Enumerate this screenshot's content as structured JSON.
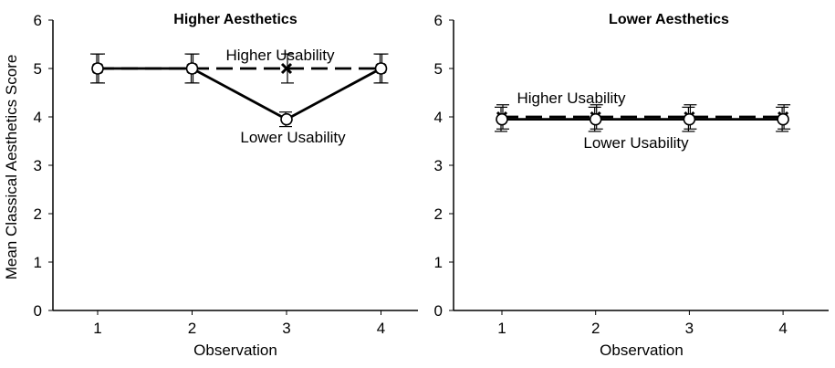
{
  "ylabel": "Mean Classical Aesthetics Score",
  "chart_data": [
    {
      "type": "line",
      "title": "Higher Aesthetics",
      "xlabel": "Observation",
      "ylabel": "Mean Classical Aesthetics Score",
      "x": [
        1,
        2,
        3,
        4
      ],
      "xticks": [
        "1",
        "2",
        "3",
        "4"
      ],
      "yticks": [
        "0",
        "1",
        "2",
        "3",
        "4",
        "5",
        "6"
      ],
      "ylim": [
        0,
        6
      ],
      "grid": false,
      "series": [
        {
          "name": "Higher Usability",
          "values": [
            5.0,
            5.0,
            5.0,
            5.0
          ],
          "errors": [
            0.3,
            0.3,
            0.3,
            0.3
          ],
          "style": "dashed",
          "marker": "x"
        },
        {
          "name": "Lower Usability",
          "values": [
            5.0,
            5.0,
            3.95,
            5.0
          ],
          "errors": [
            0.3,
            0.3,
            0.15,
            0.3
          ],
          "style": "solid",
          "marker": "o"
        }
      ]
    },
    {
      "type": "line",
      "title": "Lower Aesthetics",
      "xlabel": "Observation",
      "ylabel": "",
      "x": [
        1,
        2,
        3,
        4
      ],
      "xticks": [
        "1",
        "2",
        "3",
        "4"
      ],
      "yticks": [
        "0",
        "1",
        "2",
        "3",
        "4",
        "5",
        "6"
      ],
      "ylim": [
        0,
        6
      ],
      "grid": false,
      "series": [
        {
          "name": "Higher Usability",
          "values": [
            4.0,
            4.0,
            4.0,
            4.0
          ],
          "errors": [
            0.25,
            0.25,
            0.25,
            0.25
          ],
          "style": "dashed",
          "marker": "x"
        },
        {
          "name": "Lower Usability",
          "values": [
            3.95,
            3.95,
            3.95,
            3.95
          ],
          "errors": [
            0.25,
            0.25,
            0.25,
            0.25
          ],
          "style": "solid",
          "marker": "o"
        }
      ]
    }
  ]
}
